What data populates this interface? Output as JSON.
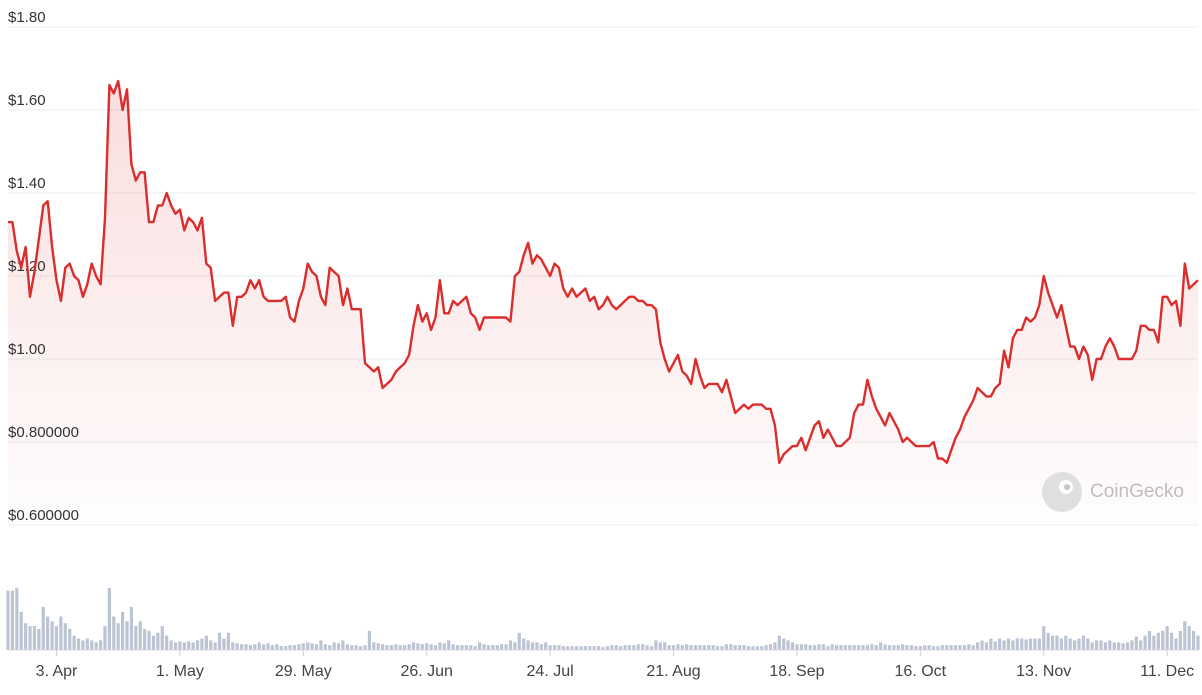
{
  "chart_data": {
    "type": "line",
    "watermark": "CoinGecko",
    "color": "#dc2d2d",
    "grid": true,
    "ylim": [
      0.6,
      1.8
    ],
    "yticks": [
      {
        "value": 0.6,
        "label": "$0.600000"
      },
      {
        "value": 0.8,
        "label": "$0.800000"
      },
      {
        "value": 1.0,
        "label": "$1.00"
      },
      {
        "value": 1.2,
        "label": "$1.20"
      },
      {
        "value": 1.4,
        "label": "$1.40"
      },
      {
        "value": 1.6,
        "label": "$1.60"
      },
      {
        "value": 1.8,
        "label": "$1.80"
      }
    ],
    "xlim": [
      0,
      270
    ],
    "xticks": [
      {
        "value": 11,
        "label": "3. Apr"
      },
      {
        "value": 39,
        "label": "1. May"
      },
      {
        "value": 67,
        "label": "29. May"
      },
      {
        "value": 95,
        "label": "26. Jun"
      },
      {
        "value": 123,
        "label": "24. Jul"
      },
      {
        "value": 151,
        "label": "21. Aug"
      },
      {
        "value": 179,
        "label": "18. Sep"
      },
      {
        "value": 207,
        "label": "16. Oct"
      },
      {
        "value": 235,
        "label": "13. Nov"
      },
      {
        "value": 263,
        "label": "11. Dec"
      }
    ],
    "values": [
      1.33,
      1.33,
      1.26,
      1.22,
      1.27,
      1.15,
      1.21,
      1.29,
      1.37,
      1.38,
      1.27,
      1.19,
      1.14,
      1.22,
      1.23,
      1.2,
      1.19,
      1.15,
      1.18,
      1.23,
      1.2,
      1.18,
      1.34,
      1.66,
      1.64,
      1.67,
      1.6,
      1.65,
      1.47,
      1.43,
      1.45,
      1.45,
      1.33,
      1.33,
      1.37,
      1.37,
      1.4,
      1.37,
      1.35,
      1.36,
      1.31,
      1.34,
      1.33,
      1.31,
      1.34,
      1.23,
      1.22,
      1.14,
      1.15,
      1.16,
      1.16,
      1.08,
      1.15,
      1.15,
      1.16,
      1.19,
      1.17,
      1.19,
      1.15,
      1.14,
      1.14,
      1.14,
      1.14,
      1.15,
      1.1,
      1.09,
      1.14,
      1.17,
      1.23,
      1.21,
      1.2,
      1.15,
      1.13,
      1.22,
      1.21,
      1.2,
      1.13,
      1.17,
      1.12,
      1.12,
      1.12,
      0.99,
      0.98,
      0.97,
      0.98,
      0.93,
      0.94,
      0.95,
      0.97,
      0.98,
      0.99,
      1.01,
      1.08,
      1.13,
      1.09,
      1.11,
      1.07,
      1.1,
      1.19,
      1.11,
      1.11,
      1.14,
      1.13,
      1.14,
      1.15,
      1.11,
      1.1,
      1.07,
      1.1,
      1.1,
      1.1,
      1.1,
      1.1,
      1.1,
      1.09,
      1.2,
      1.21,
      1.25,
      1.28,
      1.23,
      1.25,
      1.24,
      1.22,
      1.2,
      1.23,
      1.22,
      1.17,
      1.15,
      1.17,
      1.15,
      1.16,
      1.17,
      1.14,
      1.15,
      1.12,
      1.13,
      1.15,
      1.13,
      1.12,
      1.13,
      1.14,
      1.15,
      1.15,
      1.14,
      1.14,
      1.13,
      1.13,
      1.12,
      1.04,
      1.0,
      0.97,
      0.99,
      1.01,
      0.97,
      0.96,
      0.94,
      1.0,
      0.96,
      0.93,
      0.94,
      0.94,
      0.94,
      0.92,
      0.95,
      0.91,
      0.87,
      0.88,
      0.89,
      0.88,
      0.89,
      0.89,
      0.89,
      0.88,
      0.88,
      0.84,
      0.75,
      0.77,
      0.78,
      0.79,
      0.79,
      0.81,
      0.78,
      0.81,
      0.84,
      0.85,
      0.81,
      0.83,
      0.81,
      0.79,
      0.79,
      0.8,
      0.81,
      0.87,
      0.89,
      0.89,
      0.95,
      0.91,
      0.88,
      0.86,
      0.84,
      0.87,
      0.85,
      0.83,
      0.8,
      0.81,
      0.8,
      0.79,
      0.79,
      0.79,
      0.79,
      0.8,
      0.76,
      0.76,
      0.75,
      0.78,
      0.81,
      0.83,
      0.86,
      0.88,
      0.9,
      0.93,
      0.92,
      0.91,
      0.91,
      0.93,
      0.94,
      1.02,
      0.98,
      1.05,
      1.07,
      1.07,
      1.1,
      1.09,
      1.1,
      1.13,
      1.2,
      1.16,
      1.13,
      1.1,
      1.13,
      1.08,
      1.03,
      1.03,
      1.0,
      1.03,
      1.01,
      0.95,
      1.0,
      1.0,
      1.03,
      1.05,
      1.03,
      1.0,
      1.0,
      1.0,
      1.0,
      1.02,
      1.08,
      1.08,
      1.07,
      1.07,
      1.04,
      1.15,
      1.15,
      1.13,
      1.14,
      1.08,
      1.23,
      1.17,
      1.18,
      1.19
    ],
    "volume": {
      "color": "#bcc3d3",
      "ylim": [
        0,
        70
      ],
      "values": [
        62,
        62,
        65,
        40,
        28,
        25,
        25,
        22,
        45,
        35,
        30,
        25,
        35,
        28,
        22,
        15,
        12,
        10,
        12,
        10,
        8,
        10,
        25,
        65,
        35,
        28,
        40,
        30,
        45,
        25,
        30,
        22,
        20,
        15,
        18,
        25,
        15,
        10,
        8,
        9,
        8,
        9,
        8,
        10,
        12,
        15,
        10,
        8,
        18,
        12,
        18,
        8,
        7,
        6,
        6,
        5,
        6,
        8,
        6,
        7,
        5,
        6,
        4,
        4,
        5,
        5,
        6,
        7,
        8,
        7,
        6,
        10,
        6,
        5,
        8,
        7,
        10,
        6,
        5,
        5,
        4,
        5,
        20,
        8,
        7,
        6,
        5,
        5,
        6,
        5,
        5,
        6,
        8,
        7,
        6,
        7,
        6,
        5,
        8,
        7,
        10,
        6,
        5,
        5,
        5,
        5,
        4,
        8,
        6,
        5,
        5,
        5,
        6,
        6,
        10,
        8,
        18,
        12,
        10,
        8,
        8,
        6,
        8,
        5,
        5,
        5,
        4,
        4,
        4,
        4,
        4,
        4,
        4,
        4,
        4,
        3,
        4,
        5,
        5,
        4,
        5,
        5,
        5,
        6,
        6,
        5,
        4,
        10,
        8,
        8,
        5,
        5,
        6,
        5,
        6,
        5,
        5,
        5,
        5,
        5,
        5,
        4,
        4,
        6,
        6,
        5,
        5,
        5,
        4,
        4,
        4,
        4,
        5,
        6,
        8,
        15,
        12,
        10,
        8,
        6,
        6,
        6,
        5,
        5,
        6,
        6,
        4,
        6,
        5,
        5,
        5,
        5,
        5,
        5,
        5,
        5,
        6,
        5,
        8,
        6,
        5,
        5,
        5,
        6,
        5,
        5,
        4,
        4,
        5,
        5,
        4,
        4,
        5,
        5,
        5,
        5,
        5,
        5,
        6,
        5,
        8,
        10,
        8,
        12,
        9,
        12,
        10,
        12,
        10,
        12,
        12,
        11,
        12,
        12,
        12,
        25,
        18,
        15,
        15,
        12,
        15,
        12,
        10,
        12,
        15,
        12,
        8,
        10,
        10,
        8,
        10,
        8,
        8,
        7,
        8,
        10,
        14,
        10,
        15,
        20,
        15,
        18,
        20,
        25,
        18,
        12,
        20,
        30,
        25,
        20,
        15
      ]
    }
  }
}
